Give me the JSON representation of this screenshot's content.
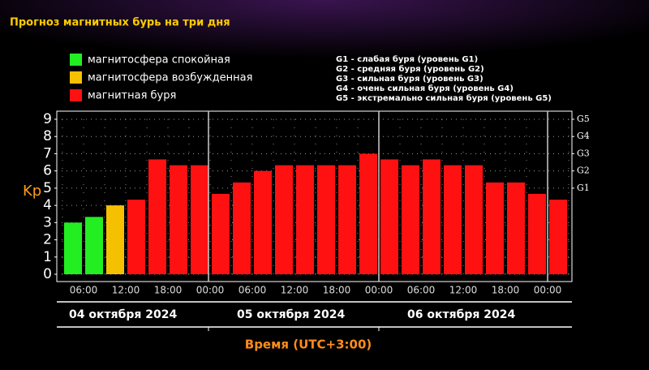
{
  "chart_data": {
    "type": "bar",
    "title": "Прогноз магнитных бурь на три дня",
    "ylabel": "Kp",
    "xlabel": "Время (UTC+3:00)",
    "categories": [
      "06:00",
      null,
      "12:00",
      null,
      "18:00",
      null,
      "00:00",
      null,
      "06:00",
      null,
      "12:00",
      null,
      "18:00",
      null,
      "00:00",
      null,
      "06:00",
      null,
      "12:00",
      null,
      "18:00",
      null,
      "00:00",
      null
    ],
    "values": [
      3.0,
      3.33,
      4.0,
      4.33,
      6.67,
      6.33,
      6.33,
      4.67,
      5.33,
      6.0,
      6.33,
      6.33,
      6.33,
      6.33,
      7.0,
      6.67,
      6.33,
      6.67,
      6.33,
      6.33,
      5.33,
      5.33,
      4.67,
      4.33
    ],
    "colors": [
      "#22ee22",
      "#22ee22",
      "#f5c000",
      "#ff1111",
      "#ff1111",
      "#ff1111",
      "#ff1111",
      "#ff1111",
      "#ff1111",
      "#ff1111",
      "#ff1111",
      "#ff1111",
      "#ff1111",
      "#ff1111",
      "#ff1111",
      "#ff1111",
      "#ff1111",
      "#ff1111",
      "#ff1111",
      "#ff1111",
      "#ff1111",
      "#ff1111",
      "#ff1111",
      "#ff1111"
    ],
    "dates": [
      "04 октября 2024",
      "05 октября 2024",
      "06 октября 2024"
    ],
    "ylim": [
      0,
      9
    ],
    "yticks": [
      0,
      1,
      2,
      3,
      4,
      5,
      6,
      7,
      8,
      9
    ],
    "y2lim": [
      0,
      9
    ],
    "y2ticks": [
      {
        "value": 5,
        "label": "G1"
      },
      {
        "value": 6,
        "label": "G2"
      },
      {
        "value": 7,
        "label": "G3"
      },
      {
        "value": 8,
        "label": "G4"
      },
      {
        "value": 9,
        "label": "G5"
      }
    ],
    "grid": true,
    "legend": [
      {
        "name": "магнитосфера спокойная",
        "color": "#22ee22"
      },
      {
        "name": "магнитосфера возбужденная",
        "color": "#f5c000"
      },
      {
        "name": "магнитная буря",
        "color": "#ff1111"
      }
    ],
    "storm_levels": [
      "G1 - слабая буря (уровень G1)",
      "G2 - средняя буря (уровень G2)",
      "G3 - сильная буря (уровень G3)",
      "G4 - очень сильная буря (уровень G4)",
      "G5 - экстремально сильная буря (уровень G5)"
    ]
  }
}
